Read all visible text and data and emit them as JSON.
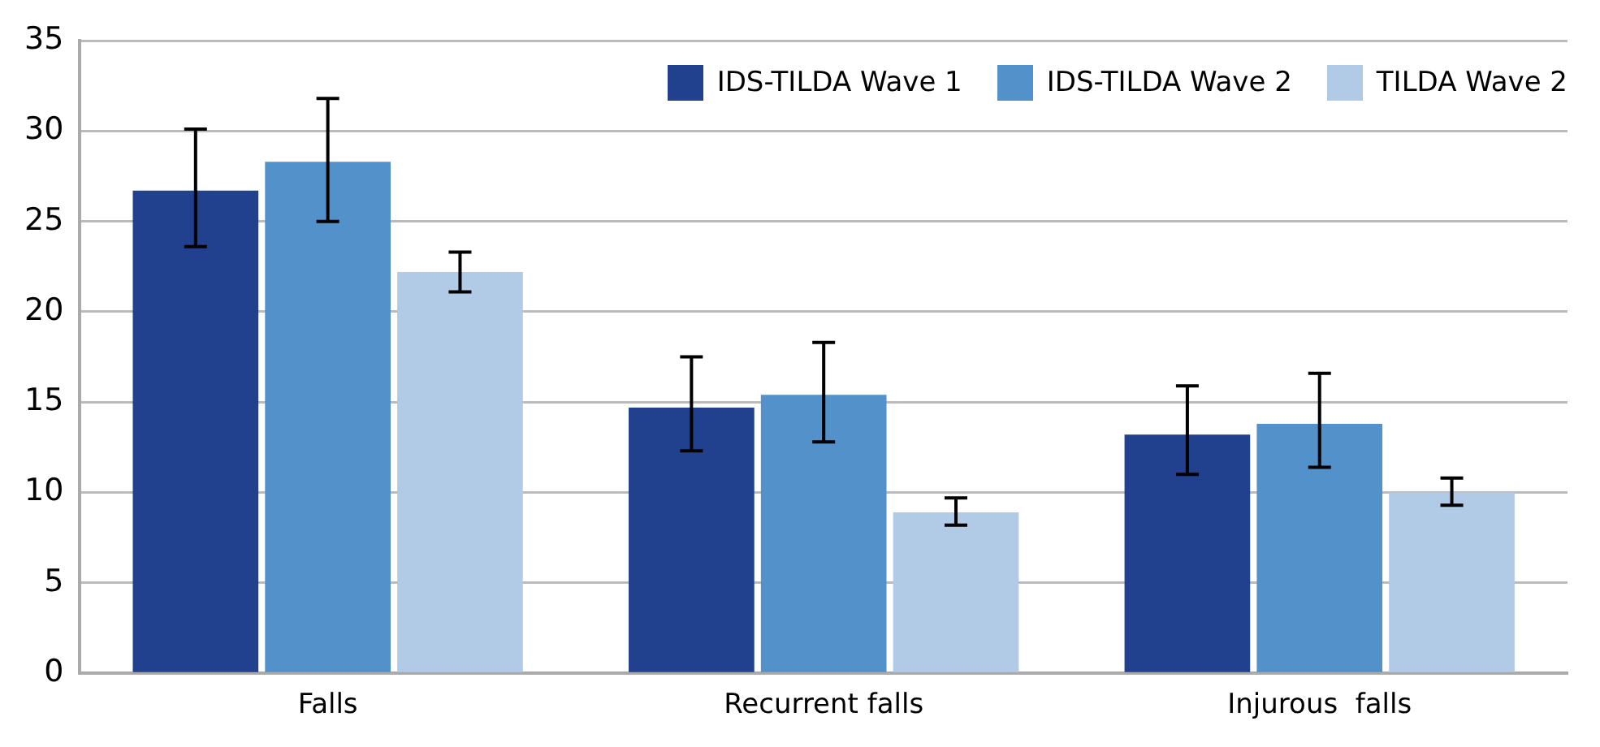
{
  "chart_data": {
    "type": "bar",
    "categories": [
      "Falls",
      "Recurrent falls",
      "Injurous  falls"
    ],
    "series": [
      {
        "name": "IDS-TILDA Wave 1",
        "color": "#21418f",
        "values": [
          26.7,
          14.7,
          13.2
        ],
        "errors": [
          [
            23.6,
            30.1
          ],
          [
            12.3,
            17.5
          ],
          [
            11.0,
            15.9
          ]
        ]
      },
      {
        "name": "IDS-TILDA Wave 2",
        "color": "#5291c9",
        "values": [
          28.3,
          15.4,
          13.8
        ],
        "errors": [
          [
            25.0,
            31.8
          ],
          [
            12.8,
            18.3
          ],
          [
            11.4,
            16.6
          ]
        ]
      },
      {
        "name": "TILDA Wave 2",
        "color": "#b1cae5",
        "values": [
          22.2,
          8.9,
          10.0
        ],
        "errors": [
          [
            21.1,
            23.3
          ],
          [
            8.2,
            9.7
          ],
          [
            9.3,
            10.8
          ]
        ]
      }
    ],
    "ylim": [
      0,
      35
    ],
    "yticks": [
      0,
      5,
      10,
      15,
      20,
      25,
      30,
      35
    ],
    "grid": "y",
    "legend": "top right"
  }
}
